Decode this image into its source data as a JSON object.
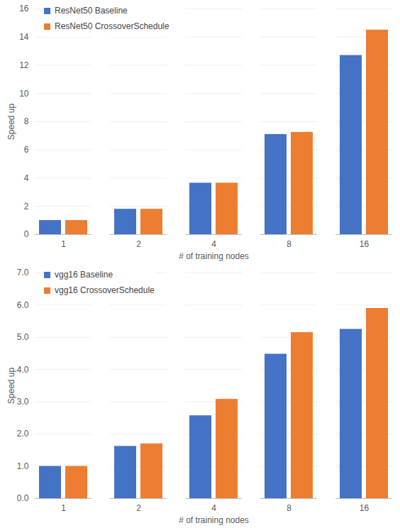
{
  "chart_data": [
    {
      "type": "bar",
      "categories": [
        "1",
        "2",
        "4",
        "8",
        "16"
      ],
      "series": [
        {
          "name": "ResNet50 Baseline",
          "color": "#4472c4",
          "values": [
            1,
            1.8,
            3.65,
            7.1,
            12.7
          ]
        },
        {
          "name": "ResNet50 CrossoverSchedule",
          "color": "#ed7d31",
          "values": [
            1,
            1.8,
            3.65,
            7.25,
            14.5
          ]
        }
      ],
      "x_label": "# of training nodes",
      "y_label": "Speed up",
      "ylim": [
        0,
        16
      ],
      "yticks": [
        0,
        2,
        4,
        6,
        8,
        10,
        12,
        14,
        16
      ],
      "grid": true,
      "legend": "top-left"
    },
    {
      "type": "bar",
      "categories": [
        "1",
        "2",
        "4",
        "8",
        "16"
      ],
      "series": [
        {
          "name": "vgg16 Baseline",
          "color": "#4472c4",
          "values": [
            1,
            1.62,
            2.57,
            4.48,
            5.25
          ]
        },
        {
          "name": "vgg16 CrossoverSchedule",
          "color": "#ed7d31",
          "values": [
            1,
            1.7,
            3.08,
            5.15,
            5.9
          ]
        }
      ],
      "x_label": "# of training nodes",
      "y_label": "Speed up",
      "ylim": [
        0,
        7
      ],
      "yticks": [
        0,
        1,
        2,
        3,
        4,
        5,
        6,
        7
      ],
      "grid": true,
      "legend": "top-left"
    }
  ]
}
